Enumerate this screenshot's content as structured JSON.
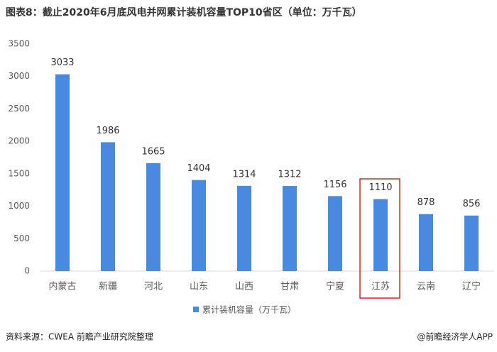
{
  "chart_data": {
    "type": "bar",
    "title": "图表8：截止2020年6月底风电并网累计装机容量TOP10省区（单位：万千瓦）",
    "categories": [
      "内蒙古",
      "新疆",
      "河北",
      "山东",
      "山西",
      "甘肃",
      "宁夏",
      "江苏",
      "云南",
      "辽宁"
    ],
    "series": [
      {
        "name": "累计装机容量（万千瓦）",
        "color": "#4a89e0",
        "values": [
          3033,
          1986,
          1665,
          1404,
          1314,
          1312,
          1156,
          1110,
          878,
          856
        ]
      }
    ],
    "ylim": [
      0,
      3500
    ],
    "yticks": [
      0,
      500,
      1000,
      1500,
      2000,
      2500,
      3000,
      3500
    ],
    "grid": false,
    "legend": "bottom",
    "source": "资料来源：CWEA  前瞻产业研究院整理",
    "credit": "@前瞻经济学人APP"
  }
}
